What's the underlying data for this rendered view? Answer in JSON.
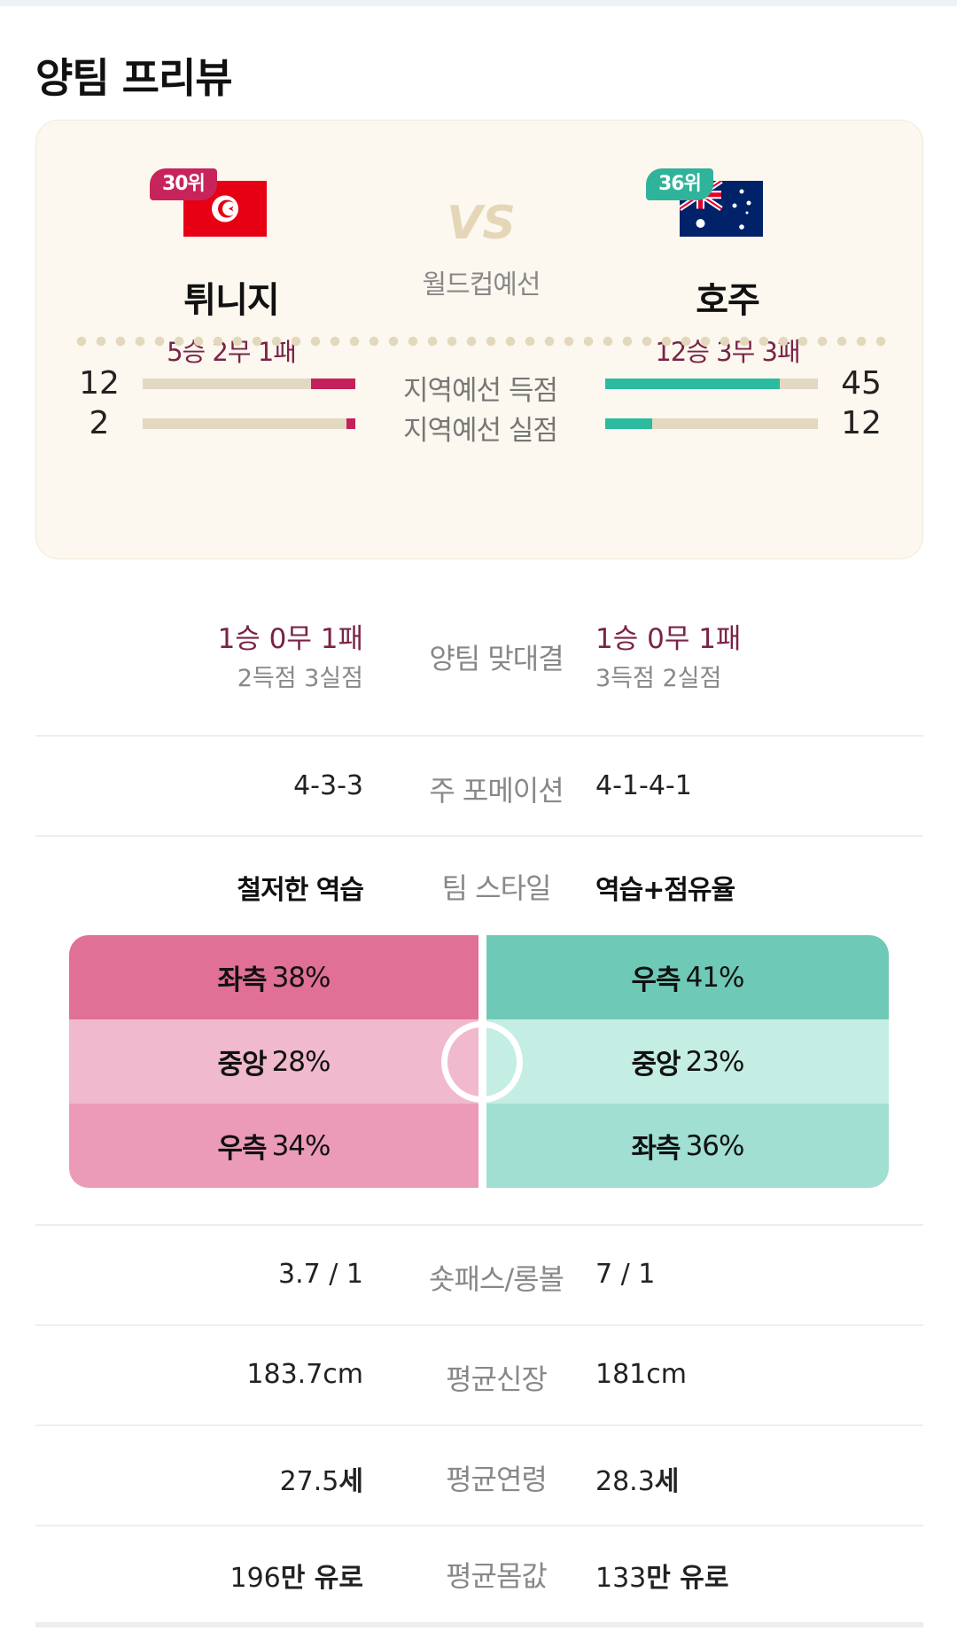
{
  "section_title": "양팀 프리뷰",
  "match": {
    "vs": "VS",
    "league": "월드컵예선",
    "home": {
      "rank": "30위",
      "name": "튀니지",
      "record": "5승 2무 1패",
      "flag": "tunisia-flag-icon",
      "color": "#c4215a"
    },
    "away": {
      "rank": "36위",
      "name": "호주",
      "record": "12승 3무 3패",
      "flag": "australia-flag-icon",
      "color": "#2dbb9f"
    }
  },
  "qualifier_stats": [
    {
      "label": "지역예선 득점",
      "home": "12",
      "away": "45",
      "home_ratio": 0.21,
      "away_ratio": 0.82
    },
    {
      "label": "지역예선 실점",
      "home": "2",
      "away": "12",
      "home_ratio": 0.04,
      "away_ratio": 0.22
    }
  ],
  "head_to_head": {
    "label": "양팀 맞대결",
    "home_record": "1승 0무 1패",
    "home_goals": "2득점 3실점",
    "away_record": "1승 0무 1패",
    "away_goals": "3득점 2실점"
  },
  "formation": {
    "label": "주 포메이션",
    "home": "4-3-3",
    "away": "4-1-4-1"
  },
  "team_style": {
    "label": "팀 스타일",
    "home": "철저한 역습",
    "away": "역습+점유율"
  },
  "attack_zones": {
    "home": [
      {
        "zone": "좌측",
        "pct": "38%",
        "color": "#e07095"
      },
      {
        "zone": "중앙",
        "pct": "28%",
        "color": "#f0b9cd"
      },
      {
        "zone": "우측",
        "pct": "34%",
        "color": "#eb9bb8"
      }
    ],
    "away": [
      {
        "zone": "우측",
        "pct": "41%",
        "color": "#6fc9b7"
      },
      {
        "zone": "중앙",
        "pct": "23%",
        "color": "#c4ede3"
      },
      {
        "zone": "좌측",
        "pct": "36%",
        "color": "#a0dfd2"
      }
    ]
  },
  "short_long": {
    "label": "숏패스/롱볼",
    "home": "3.7 / 1",
    "away": "7 / 1"
  },
  "height": {
    "label": "평균신장",
    "home": "183.7cm",
    "away": "181cm"
  },
  "age": {
    "label": "평균연령",
    "home_num": "27.5",
    "home_unit": "세",
    "away_num": "28.3",
    "away_unit": "세"
  },
  "value": {
    "label": "평균몸값",
    "home_num": "196",
    "home_unit": "만 유로",
    "away_num": "133",
    "away_unit": "만 유로"
  }
}
